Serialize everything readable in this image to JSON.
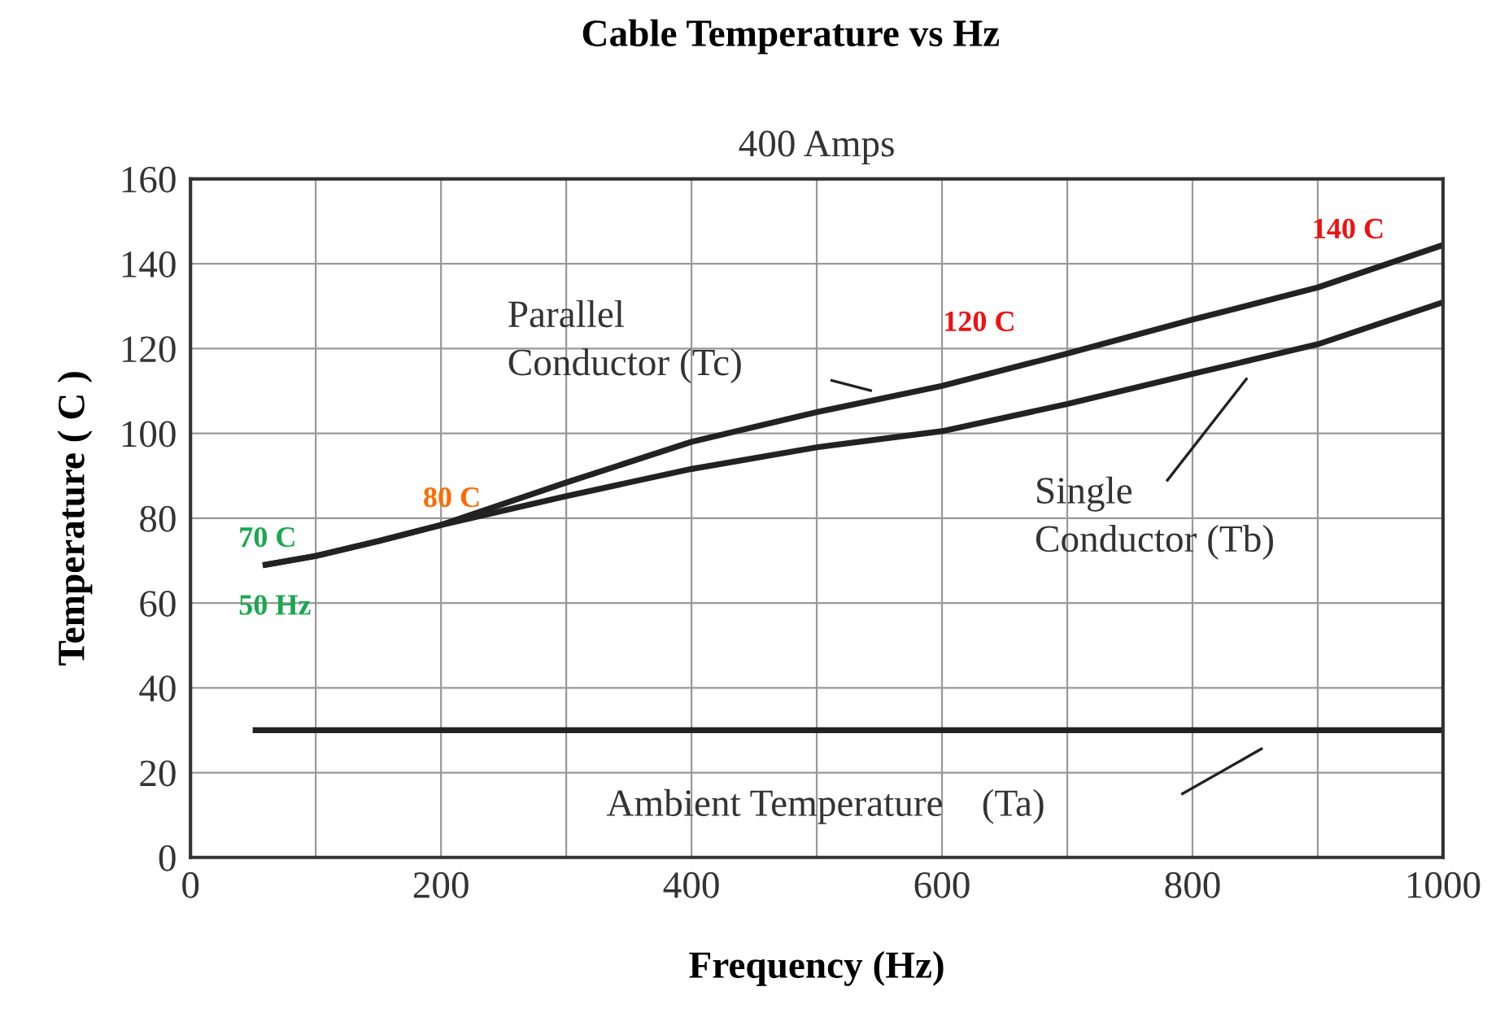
{
  "chart_data": {
    "type": "line",
    "title": "Cable Temperature vs Hz",
    "subtitle": "400 Amps",
    "xlabel": "Frequency (Hz)",
    "ylabel": "Temperature ( C )",
    "series": [
      {
        "name": "Parallel\nConductor (Tc)",
        "color": "#222222",
        "x": [
          60,
          100,
          150,
          200,
          300,
          400,
          500,
          600,
          700,
          800,
          900,
          1000
        ],
        "values": [
          69,
          71.1,
          74.6,
          78.4,
          88.4,
          98,
          105,
          111.2,
          118.8,
          126.8,
          134.4,
          144.4
        ]
      },
      {
        "name": "Single\nConductor (Tb)",
        "color": "#222222",
        "x": [
          60,
          100,
          150,
          200,
          300,
          400,
          500,
          600,
          700,
          800,
          900,
          1000
        ],
        "values": [
          69,
          71.1,
          74.6,
          78.4,
          85.2,
          91.6,
          96.7,
          100.5,
          106.9,
          114,
          121,
          130.9
        ]
      },
      {
        "name": "Ambient Temperature    (Ta)",
        "color": "#222222",
        "x": [
          52,
          1000
        ],
        "values": [
          30,
          30
        ]
      }
    ],
    "annotations": [
      {
        "text": "70 C",
        "x": 60,
        "y": 69
      },
      {
        "text": "50 Hz",
        "x": 60,
        "y": 69
      },
      {
        "text": "80 C",
        "x": 200,
        "y": 78.4
      },
      {
        "text": "120 C",
        "x": 700,
        "y": 118.8
      },
      {
        "text": "140 C",
        "x": 1000,
        "y": 144.4
      }
    ],
    "xlim": [
      0,
      1000
    ],
    "ylim": [
      0,
      160
    ],
    "xticks": [
      0,
      {
        "value": 100,
        "label": null
      },
      200,
      {
        "value": 300,
        "label": null
      },
      400,
      {
        "value": 500,
        "label": null
      },
      600,
      {
        "value": 700,
        "label": null
      },
      800,
      {
        "value": 900,
        "label": null
      },
      1000
    ],
    "yticks": [
      0,
      20,
      40,
      60,
      80,
      100,
      120,
      140,
      160
    ],
    "grid": true,
    "marker": "none",
    "line_style": "solid",
    "legend": false
  }
}
